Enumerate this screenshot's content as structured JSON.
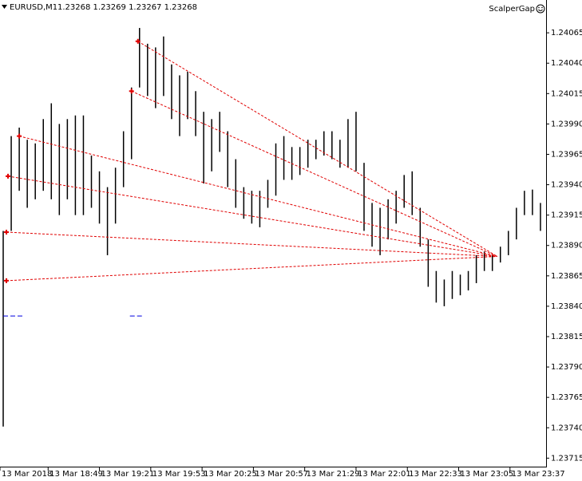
{
  "chart_data": {
    "type": "ohlc",
    "symbol": "EURUSD,M1",
    "quote": "1.23268 1.23269 1.23267 1.23268",
    "indicator": "ScalperGap",
    "color": "#000000",
    "x": [
      "18:21",
      "18:26",
      "18:31",
      "18:36",
      "18:41",
      "18:46",
      "18:51",
      "18:56",
      "19:01",
      "19:06",
      "19:11",
      "19:16",
      "19:21",
      "19:26",
      "19:31",
      "19:36",
      "19:41",
      "19:46",
      "19:51",
      "19:56",
      "20:01",
      "20:06",
      "20:11",
      "20:16",
      "20:21",
      "20:26",
      "20:31",
      "20:36",
      "20:41",
      "20:46",
      "20:51",
      "20:56",
      "21:01",
      "21:06",
      "21:11",
      "21:16",
      "21:21",
      "21:26",
      "21:31",
      "21:36",
      "21:41",
      "21:46",
      "21:51",
      "21:56",
      "22:01",
      "22:06",
      "22:11",
      "22:16",
      "22:21",
      "22:26",
      "22:31",
      "22:36",
      "22:41",
      "22:46",
      "22:51",
      "22:56",
      "23:01",
      "23:06",
      "23:11",
      "23:16",
      "23:21",
      "23:26",
      "23:31",
      "23:36",
      "23:41",
      "23:46",
      "23:51",
      "23:56"
    ],
    "high": [
      1.23902,
      1.2398,
      1.23987,
      1.23977,
      1.23974,
      1.23994,
      1.24007,
      1.2399,
      1.23994,
      1.23997,
      1.23997,
      1.23964,
      1.23951,
      1.23938,
      1.23954,
      1.23984,
      1.2402,
      1.24069,
      1.24056,
      1.24053,
      1.24062,
      1.24039,
      1.2403,
      1.24033,
      1.24017,
      1.24,
      1.23994,
      1.24,
      1.23984,
      1.23961,
      1.23938,
      1.23935,
      1.23935,
      1.23944,
      1.23974,
      1.2398,
      1.23971,
      1.23971,
      1.23977,
      1.23977,
      1.23984,
      1.23984,
      1.23977,
      1.23994,
      1.24,
      1.23958,
      1.23925,
      1.23921,
      1.23928,
      1.23935,
      1.23948,
      1.23951,
      1.23921,
      1.23895,
      1.23869,
      1.23862,
      1.23869,
      1.23866,
      1.23869,
      1.23882,
      1.23885,
      1.23882,
      1.23889,
      1.23902,
      1.23921,
      1.23935,
      1.23936,
      1.23925
    ],
    "low": [
      1.23741,
      1.23902,
      1.23935,
      1.23921,
      1.23928,
      1.23935,
      1.23928,
      1.23915,
      1.23928,
      1.23915,
      1.23915,
      1.23921,
      1.23908,
      1.23882,
      1.23908,
      1.23938,
      1.23961,
      1.2402,
      1.24013,
      1.24003,
      1.24013,
      1.23994,
      1.2398,
      1.23994,
      1.2398,
      1.23941,
      1.23951,
      1.23967,
      1.23938,
      1.23921,
      1.23912,
      1.23908,
      1.23905,
      1.23921,
      1.23931,
      1.23944,
      1.23944,
      1.23948,
      1.23954,
      1.23961,
      1.23964,
      1.23961,
      1.23954,
      1.23954,
      1.23951,
      1.23902,
      1.23889,
      1.23882,
      1.23895,
      1.23908,
      1.23921,
      1.23915,
      1.23889,
      1.23856,
      1.23843,
      1.2384,
      1.23846,
      1.23849,
      1.23853,
      1.23859,
      1.23869,
      1.23869,
      1.23876,
      1.23882,
      1.23895,
      1.23915,
      1.23915,
      1.23902
    ],
    "trend_lines": {
      "color": "#e00000",
      "x": [
        [
          "18:23",
          "23:29"
        ],
        [
          "18:23",
          "23:29"
        ],
        [
          "18:24",
          "23:29"
        ],
        [
          "18:31",
          "23:29"
        ],
        [
          "19:41",
          "23:29"
        ],
        [
          "19:45",
          "23:29"
        ]
      ],
      "y": [
        [
          1.23861,
          1.23881
        ],
        [
          1.23901,
          1.23881
        ],
        [
          1.23947,
          1.23881
        ],
        [
          1.2398,
          1.23881
        ],
        [
          1.24017,
          1.23881
        ],
        [
          1.24058,
          1.23881
        ]
      ]
    },
    "levels": {
      "color": "#0000e0",
      "x": [
        [
          "18:21",
          "18:34"
        ],
        [
          "19:40",
          "19:48"
        ]
      ],
      "y": [
        1.23832,
        1.23832
      ]
    },
    "xlim": [
      "18:19",
      "23:59"
    ],
    "ylim": [
      1.23708,
      1.24092
    ],
    "yticks": [
      1.24065,
      {
        "value": 1.2404,
        "label": "1.24040"
      },
      1.24015,
      {
        "value": 1.2399,
        "label": "1.23990"
      },
      1.23965,
      {
        "value": 1.2394,
        "label": "1.23940"
      },
      1.23915,
      {
        "value": 1.2389,
        "label": "1.23890"
      },
      1.23865,
      {
        "value": 1.2384,
        "label": "1.23840"
      },
      1.23815,
      {
        "value": 1.2379,
        "label": "1.23790"
      },
      1.23765,
      {
        "value": 1.2374,
        "label": "1.23740"
      },
      1.23715
    ],
    "xticks": [
      {
        "value": "18:19",
        "label": "13 Mar 2018"
      },
      {
        "value": "18:49",
        "label": "13 Mar 18:49"
      },
      {
        "value": "19:21",
        "label": "13 Mar 19:21"
      },
      {
        "value": "19:53",
        "label": "13 Mar 19:53"
      },
      {
        "value": "20:25",
        "label": "13 Mar 20:25"
      },
      {
        "value": "20:57",
        "label": "13 Mar 20:57"
      },
      {
        "value": "21:29",
        "label": "13 Mar 21:29"
      },
      {
        "value": "22:01",
        "label": "13 Mar 22:01"
      },
      {
        "value": "22:33",
        "label": "13 Mar 22:33"
      },
      {
        "value": "23:05",
        "label": "13 Mar 23:05"
      },
      {
        "value": "23:37",
        "label": "13 Mar 23:37"
      }
    ]
  }
}
